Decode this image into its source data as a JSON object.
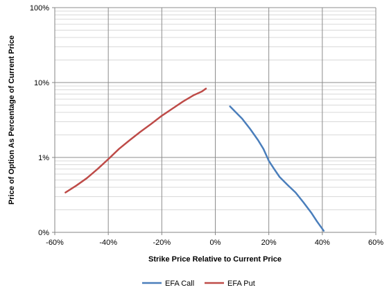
{
  "chart_data": {
    "type": "line",
    "title": "",
    "xlabel": "Strike Price Relative to Current Price",
    "ylabel": "Price of Option As Percentage of Current Price",
    "x_ticks": [
      -60,
      -40,
      -20,
      0,
      20,
      40,
      60
    ],
    "x_tick_labels": [
      "-60%",
      "-40%",
      "-20%",
      "0%",
      "20%",
      "40%",
      "60%"
    ],
    "xlim": [
      -60,
      60
    ],
    "y_scale": "log",
    "ylim": [
      0.1,
      100
    ],
    "y_ticks": [
      0.1,
      1,
      10,
      100
    ],
    "y_tick_labels": [
      "0%",
      "1%",
      "10%",
      "100%"
    ],
    "grid": true,
    "legend_position": "bottom",
    "series": [
      {
        "name": "EFA Call",
        "color": "#4a7ebb",
        "points": [
          [
            5.5,
            4.8
          ],
          [
            8,
            3.9
          ],
          [
            10,
            3.3
          ],
          [
            13,
            2.4
          ],
          [
            16,
            1.7
          ],
          [
            18,
            1.3
          ],
          [
            20,
            0.9
          ],
          [
            22,
            0.7
          ],
          [
            24,
            0.55
          ],
          [
            27,
            0.43
          ],
          [
            30,
            0.34
          ],
          [
            33,
            0.25
          ],
          [
            36,
            0.18
          ],
          [
            38,
            0.14
          ],
          [
            40.5,
            0.105
          ]
        ]
      },
      {
        "name": "EFA Put",
        "color": "#be4b48",
        "points": [
          [
            -56,
            0.34
          ],
          [
            -52,
            0.42
          ],
          [
            -48,
            0.53
          ],
          [
            -44,
            0.7
          ],
          [
            -40,
            0.95
          ],
          [
            -36,
            1.3
          ],
          [
            -32,
            1.7
          ],
          [
            -28,
            2.2
          ],
          [
            -24,
            2.8
          ],
          [
            -20,
            3.6
          ],
          [
            -16,
            4.5
          ],
          [
            -12,
            5.6
          ],
          [
            -8,
            6.8
          ],
          [
            -5,
            7.6
          ],
          [
            -3.5,
            8.3
          ]
        ]
      }
    ]
  }
}
